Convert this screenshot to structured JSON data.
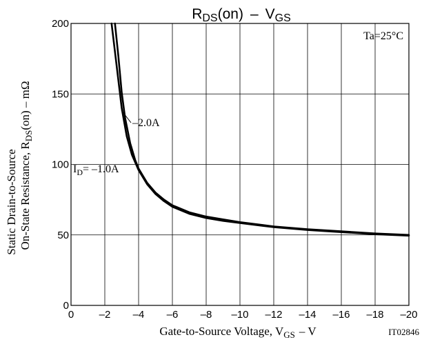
{
  "chart_data": {
    "type": "line",
    "title": "RDS(on) - VGS",
    "title_parts": {
      "main": "R",
      "sub1": "DS",
      "mid": "(on)",
      "dash": "–",
      "v": "V",
      "sub2": "GS"
    },
    "condition_label": "Ta=25°C",
    "xlabel_parts": {
      "main": "Gate-to-Source Voltage, V",
      "sub": "GS",
      "tail": "– V"
    },
    "ylabel_line1": "Static Drain-to-Source",
    "ylabel_line2_parts": {
      "main": "On-State Resistance, R",
      "sub": "DS",
      "tail": "(on) – mΩ"
    },
    "figure_id": "IT02846",
    "xlim": [
      0,
      -20
    ],
    "ylim": [
      0,
      200
    ],
    "x_ticks": [
      0,
      -2,
      -4,
      -6,
      -8,
      -10,
      -12,
      -14,
      -16,
      -18,
      -20
    ],
    "x_tick_labels": [
      "0",
      "–2",
      "–4",
      "–6",
      "–8",
      "–10",
      "–12",
      "–14",
      "–16",
      "–18",
      "–20"
    ],
    "y_ticks": [
      0,
      50,
      100,
      150,
      200
    ],
    "y_tick_labels": [
      "0",
      "50",
      "100",
      "150",
      "200"
    ],
    "grid": true,
    "series": [
      {
        "name": "ID = –1.0A",
        "label_parts": {
          "main": "I",
          "sub": "D",
          "tail": "= –1.0A"
        },
        "x": [
          -2.6,
          -2.8,
          -3.0,
          -3.2,
          -3.5,
          -3.8,
          -4.0,
          -4.5,
          -5.0,
          -5.5,
          -6.0,
          -7.0,
          -8.0,
          -9.0,
          -10.0,
          -12.0,
          -14.0,
          -16.0,
          -18.0,
          -20.0
        ],
        "y": [
          200,
          177,
          151,
          133,
          115,
          103,
          97,
          87,
          80,
          75,
          71,
          66,
          63,
          61,
          59,
          56,
          54,
          52.5,
          51,
          50
        ]
      },
      {
        "name": "–2.0A",
        "label_parts": {
          "main": "–2.0A"
        },
        "x": [
          -2.4,
          -2.6,
          -2.8,
          -3.0,
          -3.3,
          -3.6,
          -4.0,
          -4.5,
          -5.0,
          -5.5,
          -6.0,
          -7.0,
          -8.0,
          -9.0,
          -10.0,
          -12.0,
          -14.0,
          -16.0,
          -18.0,
          -20.0
        ],
        "y": [
          200,
          180,
          160,
          140,
          120,
          107,
          96,
          86,
          79,
          74,
          70,
          65,
          62,
          60,
          58.5,
          55.5,
          53.5,
          52,
          50.5,
          49.5
        ]
      }
    ]
  }
}
